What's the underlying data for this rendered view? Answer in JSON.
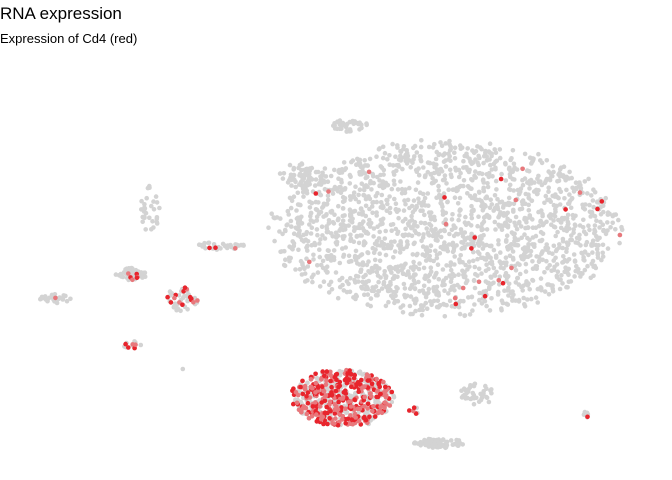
{
  "chart_data": {
    "type": "scatter",
    "title": "RNA expression",
    "subtitle": "Expression of Cd4 (red)",
    "xlabel": "",
    "ylabel": "",
    "grid": false,
    "axes_visible": false,
    "colors": {
      "low": "#d3d3d3",
      "high": "#e8242c",
      "mid": "#e8787c"
    },
    "description_of_values": "Unlabelled 2D embedding (t-SNE style). Gray = no Cd4 expression, red = Cd4 expressed. Coordinates are in arbitrary embedding units (x: 0-100 left->right, y: 0-100 bottom->top).",
    "xlim": [
      0,
      100
    ],
    "ylim": [
      0,
      100
    ],
    "clusters": [
      {
        "cx": 68,
        "cy": 59,
        "rx": 27,
        "ry": 21,
        "n": 1900,
        "expr": 0.012
      },
      {
        "cx": 46,
        "cy": 72,
        "rx": 4,
        "ry": 3,
        "n": 70,
        "expr": 0.0
      },
      {
        "cx": 53,
        "cy": 84,
        "rx": 3,
        "ry": 1.5,
        "n": 35,
        "expr": 0.0
      },
      {
        "cx": 22,
        "cy": 64,
        "rx": 1.6,
        "ry": 6,
        "n": 30,
        "expr": 0.0
      },
      {
        "cx": 33,
        "cy": 55,
        "rx": 4,
        "ry": 1,
        "n": 30,
        "expr": 0.1
      },
      {
        "cx": 19,
        "cy": 48,
        "rx": 2.5,
        "ry": 1.5,
        "n": 55,
        "expr": 0.05
      },
      {
        "cx": 27,
        "cy": 42,
        "rx": 2.5,
        "ry": 3,
        "n": 50,
        "expr": 0.3
      },
      {
        "cx": 7,
        "cy": 42,
        "rx": 2.5,
        "ry": 1.2,
        "n": 30,
        "expr": 0.05
      },
      {
        "cx": 19,
        "cy": 31,
        "rx": 1.6,
        "ry": 1,
        "n": 15,
        "expr": 0.3
      },
      {
        "cx": 52,
        "cy": 18,
        "rx": 8,
        "ry": 7,
        "n": 600,
        "expr": 0.55
      },
      {
        "cx": 67,
        "cy": 7,
        "rx": 4,
        "ry": 1.2,
        "n": 70,
        "expr": 0.0
      },
      {
        "cx": 73,
        "cy": 19,
        "rx": 3,
        "ry": 3,
        "n": 40,
        "expr": 0.0
      },
      {
        "cx": 63,
        "cy": 15,
        "rx": 1,
        "ry": 1,
        "n": 6,
        "expr": 0.3
      },
      {
        "cx": 90,
        "cy": 14,
        "rx": 1,
        "ry": 1,
        "n": 6,
        "expr": 0.4
      },
      {
        "cx": 27,
        "cy": 25,
        "rx": 0.3,
        "ry": 0.3,
        "n": 1,
        "expr": 0.0
      }
    ]
  }
}
